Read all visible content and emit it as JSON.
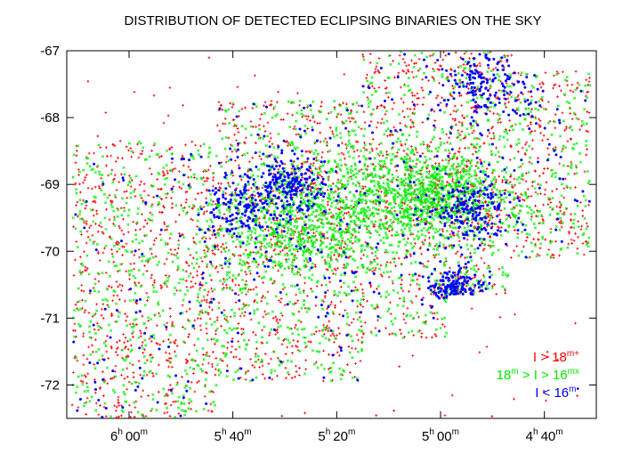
{
  "chart_data": {
    "type": "scatter",
    "title": "DISTRIBUTION OF DETECTED ECLIPSING BINARIES ON THE SKY",
    "xlabel": "",
    "ylabel": "",
    "x_axis": {
      "unit": "hours (right ascension)",
      "direction": "decreasing-left-to-right",
      "range": [
        6.2,
        4.5
      ],
      "ticks": [
        {
          "value": 6.0,
          "h": "6",
          "h_sup": "h",
          "m": "00",
          "m_sup": "m"
        },
        {
          "value": 5.6667,
          "h": "5",
          "h_sup": "h",
          "m": "40",
          "m_sup": "m"
        },
        {
          "value": 5.3333,
          "h": "5",
          "h_sup": "h",
          "m": "20",
          "m_sup": "m"
        },
        {
          "value": 5.0,
          "h": "5",
          "h_sup": "h",
          "m": "00",
          "m_sup": "m"
        },
        {
          "value": 4.6667,
          "h": "4",
          "h_sup": "h",
          "m": "40",
          "m_sup": "m"
        }
      ]
    },
    "y_axis": {
      "unit": "degrees (declination)",
      "range": [
        -72.5,
        -67.0
      ],
      "ticks": [
        {
          "value": -67,
          "label": "-67"
        },
        {
          "value": -68,
          "label": "-68"
        },
        {
          "value": -69,
          "label": "-69"
        },
        {
          "value": -70,
          "label": "-70"
        },
        {
          "value": -71,
          "label": "-71"
        },
        {
          "value": -72,
          "label": "-72"
        }
      ]
    },
    "grid": false,
    "legend": {
      "placement": "bottom-right",
      "entries": [
        {
          "series": "faint",
          "text": "I > 18",
          "sup": "m",
          "marker": "+"
        },
        {
          "series": "medium",
          "text_a": "18",
          "sup_a": "m",
          "text_b": " > I > 16",
          "sup_b": "m",
          "marker": "x"
        },
        {
          "series": "bright",
          "text": "I < 16",
          "sup": "m",
          "marker": "•"
        }
      ]
    },
    "series": [
      {
        "id": "faint",
        "name": "I > 18m",
        "color": "#ff0000",
        "marker": "plus"
      },
      {
        "id": "medium",
        "name": "18m > I > 16m",
        "color": "#00ee00",
        "marker": "cross"
      },
      {
        "id": "bright",
        "name": "I < 16m",
        "color": "#0000ff",
        "marker": "dot"
      }
    ],
    "footprint_fields": [
      {
        "x": [
          6.18,
          5.92
        ],
        "y": [
          -72.5,
          -68.35
        ]
      },
      {
        "x": [
          5.92,
          5.72
        ],
        "y": [
          -72.5,
          -68.35
        ]
      },
      {
        "x": [
          5.72,
          5.25
        ],
        "y": [
          -71.95,
          -67.75
        ]
      },
      {
        "x": [
          5.25,
          4.98
        ],
        "y": [
          -71.3,
          -67.0
        ]
      },
      {
        "x": [
          4.98,
          4.78
        ],
        "y": [
          -70.65,
          -67.0
        ]
      },
      {
        "x": [
          4.78,
          4.52
        ],
        "y": [
          -70.1,
          -67.3
        ]
      }
    ],
    "density_clumps": [
      {
        "x": 5.45,
        "y": -69.7,
        "sx": 0.13,
        "sy": 0.35,
        "series": "medium"
      },
      {
        "x": 5.62,
        "y": -69.3,
        "sx": 0.07,
        "sy": 0.3,
        "series": "bright"
      },
      {
        "x": 5.18,
        "y": -69.2,
        "sx": 0.15,
        "sy": 0.4,
        "series": "medium"
      },
      {
        "x": 5.0,
        "y": -69.1,
        "sx": 0.1,
        "sy": 0.3,
        "series": "medium"
      },
      {
        "x": 4.9,
        "y": -69.4,
        "sx": 0.07,
        "sy": 0.25,
        "series": "bright"
      },
      {
        "x": 5.48,
        "y": -69.0,
        "sx": 0.05,
        "sy": 0.2,
        "series": "bright"
      },
      {
        "x": 4.95,
        "y": -70.55,
        "sx": 0.04,
        "sy": 0.12,
        "series": "bright"
      },
      {
        "x": 4.85,
        "y": -67.5,
        "sx": 0.08,
        "sy": 0.3,
        "series": "bright"
      }
    ]
  }
}
